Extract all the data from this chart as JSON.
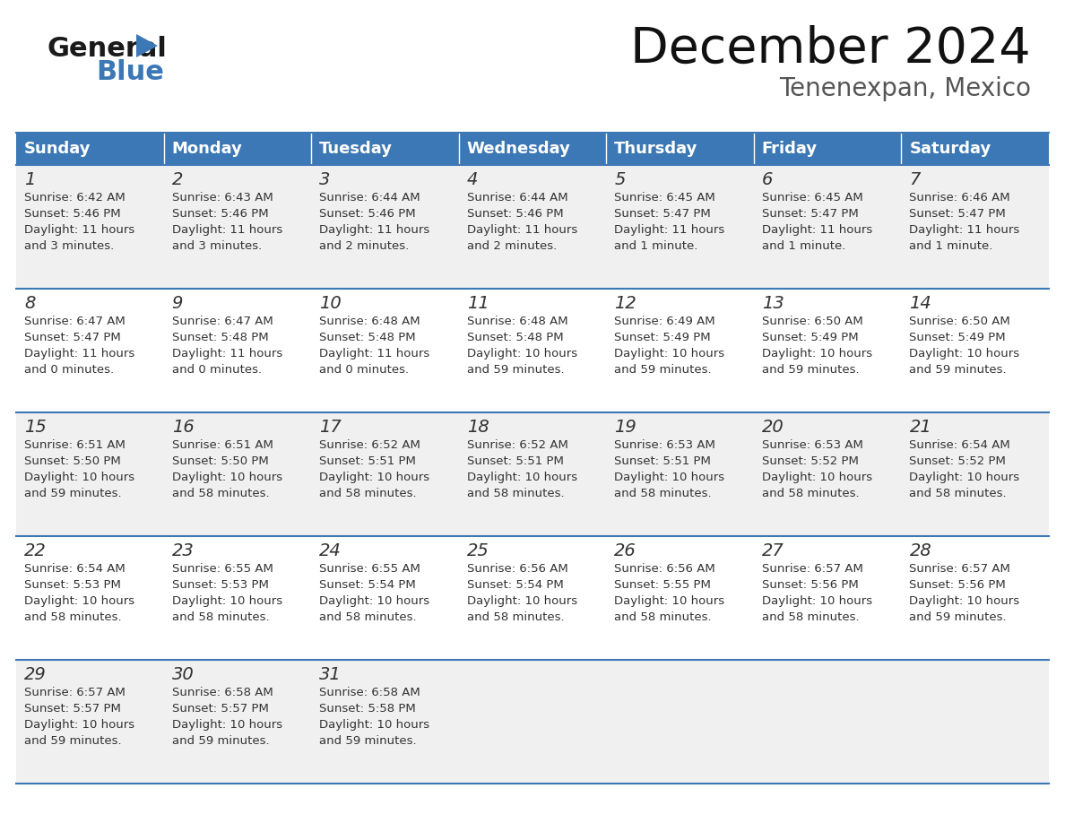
{
  "title": "December 2024",
  "subtitle": "Tenenexpan, Mexico",
  "header_color": "#3C78B5",
  "header_text_color": "#FFFFFF",
  "days_of_week": [
    "Sunday",
    "Monday",
    "Tuesday",
    "Wednesday",
    "Thursday",
    "Friday",
    "Saturday"
  ],
  "bg_color": "#FFFFFF",
  "row_bg_colors": [
    "#F0F0F0",
    "#FFFFFF",
    "#F0F0F0",
    "#FFFFFF",
    "#F0F0F0"
  ],
  "line_color": "#3C78B5",
  "text_color": "#333333",
  "calendar_data": [
    [
      {
        "day": 1,
        "sunrise": "6:42 AM",
        "sunset": "5:46 PM",
        "daylight_line1": "Daylight: 11 hours",
        "daylight_line2": "and 3 minutes."
      },
      {
        "day": 2,
        "sunrise": "6:43 AM",
        "sunset": "5:46 PM",
        "daylight_line1": "Daylight: 11 hours",
        "daylight_line2": "and 3 minutes."
      },
      {
        "day": 3,
        "sunrise": "6:44 AM",
        "sunset": "5:46 PM",
        "daylight_line1": "Daylight: 11 hours",
        "daylight_line2": "and 2 minutes."
      },
      {
        "day": 4,
        "sunrise": "6:44 AM",
        "sunset": "5:46 PM",
        "daylight_line1": "Daylight: 11 hours",
        "daylight_line2": "and 2 minutes."
      },
      {
        "day": 5,
        "sunrise": "6:45 AM",
        "sunset": "5:47 PM",
        "daylight_line1": "Daylight: 11 hours",
        "daylight_line2": "and 1 minute."
      },
      {
        "day": 6,
        "sunrise": "6:45 AM",
        "sunset": "5:47 PM",
        "daylight_line1": "Daylight: 11 hours",
        "daylight_line2": "and 1 minute."
      },
      {
        "day": 7,
        "sunrise": "6:46 AM",
        "sunset": "5:47 PM",
        "daylight_line1": "Daylight: 11 hours",
        "daylight_line2": "and 1 minute."
      }
    ],
    [
      {
        "day": 8,
        "sunrise": "6:47 AM",
        "sunset": "5:47 PM",
        "daylight_line1": "Daylight: 11 hours",
        "daylight_line2": "and 0 minutes."
      },
      {
        "day": 9,
        "sunrise": "6:47 AM",
        "sunset": "5:48 PM",
        "daylight_line1": "Daylight: 11 hours",
        "daylight_line2": "and 0 minutes."
      },
      {
        "day": 10,
        "sunrise": "6:48 AM",
        "sunset": "5:48 PM",
        "daylight_line1": "Daylight: 11 hours",
        "daylight_line2": "and 0 minutes."
      },
      {
        "day": 11,
        "sunrise": "6:48 AM",
        "sunset": "5:48 PM",
        "daylight_line1": "Daylight: 10 hours",
        "daylight_line2": "and 59 minutes."
      },
      {
        "day": 12,
        "sunrise": "6:49 AM",
        "sunset": "5:49 PM",
        "daylight_line1": "Daylight: 10 hours",
        "daylight_line2": "and 59 minutes."
      },
      {
        "day": 13,
        "sunrise": "6:50 AM",
        "sunset": "5:49 PM",
        "daylight_line1": "Daylight: 10 hours",
        "daylight_line2": "and 59 minutes."
      },
      {
        "day": 14,
        "sunrise": "6:50 AM",
        "sunset": "5:49 PM",
        "daylight_line1": "Daylight: 10 hours",
        "daylight_line2": "and 59 minutes."
      }
    ],
    [
      {
        "day": 15,
        "sunrise": "6:51 AM",
        "sunset": "5:50 PM",
        "daylight_line1": "Daylight: 10 hours",
        "daylight_line2": "and 59 minutes."
      },
      {
        "day": 16,
        "sunrise": "6:51 AM",
        "sunset": "5:50 PM",
        "daylight_line1": "Daylight: 10 hours",
        "daylight_line2": "and 58 minutes."
      },
      {
        "day": 17,
        "sunrise": "6:52 AM",
        "sunset": "5:51 PM",
        "daylight_line1": "Daylight: 10 hours",
        "daylight_line2": "and 58 minutes."
      },
      {
        "day": 18,
        "sunrise": "6:52 AM",
        "sunset": "5:51 PM",
        "daylight_line1": "Daylight: 10 hours",
        "daylight_line2": "and 58 minutes."
      },
      {
        "day": 19,
        "sunrise": "6:53 AM",
        "sunset": "5:51 PM",
        "daylight_line1": "Daylight: 10 hours",
        "daylight_line2": "and 58 minutes."
      },
      {
        "day": 20,
        "sunrise": "6:53 AM",
        "sunset": "5:52 PM",
        "daylight_line1": "Daylight: 10 hours",
        "daylight_line2": "and 58 minutes."
      },
      {
        "day": 21,
        "sunrise": "6:54 AM",
        "sunset": "5:52 PM",
        "daylight_line1": "Daylight: 10 hours",
        "daylight_line2": "and 58 minutes."
      }
    ],
    [
      {
        "day": 22,
        "sunrise": "6:54 AM",
        "sunset": "5:53 PM",
        "daylight_line1": "Daylight: 10 hours",
        "daylight_line2": "and 58 minutes."
      },
      {
        "day": 23,
        "sunrise": "6:55 AM",
        "sunset": "5:53 PM",
        "daylight_line1": "Daylight: 10 hours",
        "daylight_line2": "and 58 minutes."
      },
      {
        "day": 24,
        "sunrise": "6:55 AM",
        "sunset": "5:54 PM",
        "daylight_line1": "Daylight: 10 hours",
        "daylight_line2": "and 58 minutes."
      },
      {
        "day": 25,
        "sunrise": "6:56 AM",
        "sunset": "5:54 PM",
        "daylight_line1": "Daylight: 10 hours",
        "daylight_line2": "and 58 minutes."
      },
      {
        "day": 26,
        "sunrise": "6:56 AM",
        "sunset": "5:55 PM",
        "daylight_line1": "Daylight: 10 hours",
        "daylight_line2": "and 58 minutes."
      },
      {
        "day": 27,
        "sunrise": "6:57 AM",
        "sunset": "5:56 PM",
        "daylight_line1": "Daylight: 10 hours",
        "daylight_line2": "and 58 minutes."
      },
      {
        "day": 28,
        "sunrise": "6:57 AM",
        "sunset": "5:56 PM",
        "daylight_line1": "Daylight: 10 hours",
        "daylight_line2": "and 59 minutes."
      }
    ],
    [
      {
        "day": 29,
        "sunrise": "6:57 AM",
        "sunset": "5:57 PM",
        "daylight_line1": "Daylight: 10 hours",
        "daylight_line2": "and 59 minutes."
      },
      {
        "day": 30,
        "sunrise": "6:58 AM",
        "sunset": "5:57 PM",
        "daylight_line1": "Daylight: 10 hours",
        "daylight_line2": "and 59 minutes."
      },
      {
        "day": 31,
        "sunrise": "6:58 AM",
        "sunset": "5:58 PM",
        "daylight_line1": "Daylight: 10 hours",
        "daylight_line2": "and 59 minutes."
      },
      null,
      null,
      null,
      null
    ]
  ],
  "logo_color_general": "#1a1a1a",
  "logo_color_blue": "#3C78B5",
  "title_fontsize": 40,
  "subtitle_fontsize": 20,
  "header_fontsize": 13,
  "day_num_fontsize": 14,
  "cell_text_fontsize": 9.5
}
